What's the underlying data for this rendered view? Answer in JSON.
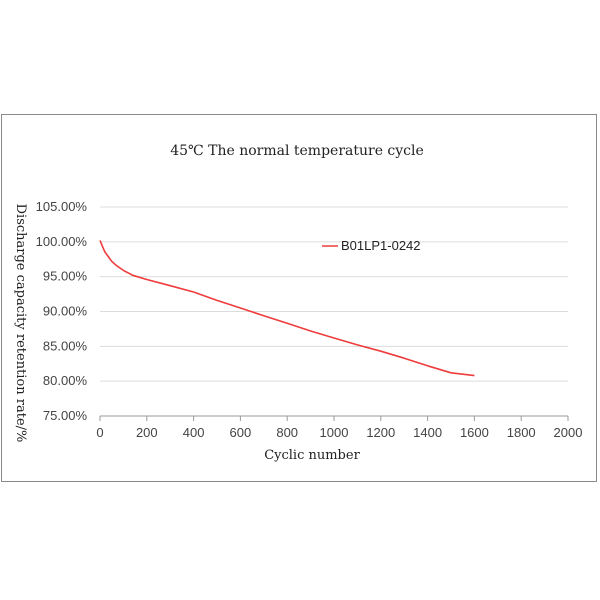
{
  "chart_data": {
    "type": "line",
    "title": "45℃ The normal temperature cycle",
    "xlabel": "Cyclic number",
    "ylabel": "Discharge capacity retention rate/%",
    "xlim": [
      0,
      2000
    ],
    "ylim": [
      75,
      105
    ],
    "xticks": [
      0,
      200,
      400,
      600,
      800,
      1000,
      1200,
      1400,
      1600,
      1800,
      2000
    ],
    "yticks": [
      75,
      80,
      85,
      90,
      95,
      100,
      105
    ],
    "ytick_labels": [
      "75.00%",
      "80.00%",
      "85.00%",
      "90.00%",
      "95.00%",
      "100.00%",
      "105.00%"
    ],
    "grid": true,
    "legend_position": "upper-right",
    "colors": {
      "series": "#ee3b3b",
      "grid": "#dcdcdc",
      "axis": "#9a9a9a"
    },
    "series": [
      {
        "name": "B01LP1-0242",
        "x": [
          0,
          10,
          20,
          35,
          50,
          70,
          100,
          140,
          200,
          300,
          400,
          500,
          600,
          700,
          800,
          900,
          1000,
          1100,
          1200,
          1300,
          1400,
          1500,
          1600
        ],
        "y": [
          100.2,
          99.4,
          98.6,
          97.9,
          97.2,
          96.6,
          95.9,
          95.2,
          94.6,
          93.7,
          92.8,
          91.6,
          90.5,
          89.4,
          88.3,
          87.2,
          86.2,
          85.2,
          84.3,
          83.3,
          82.2,
          81.2,
          80.8
        ]
      }
    ]
  }
}
